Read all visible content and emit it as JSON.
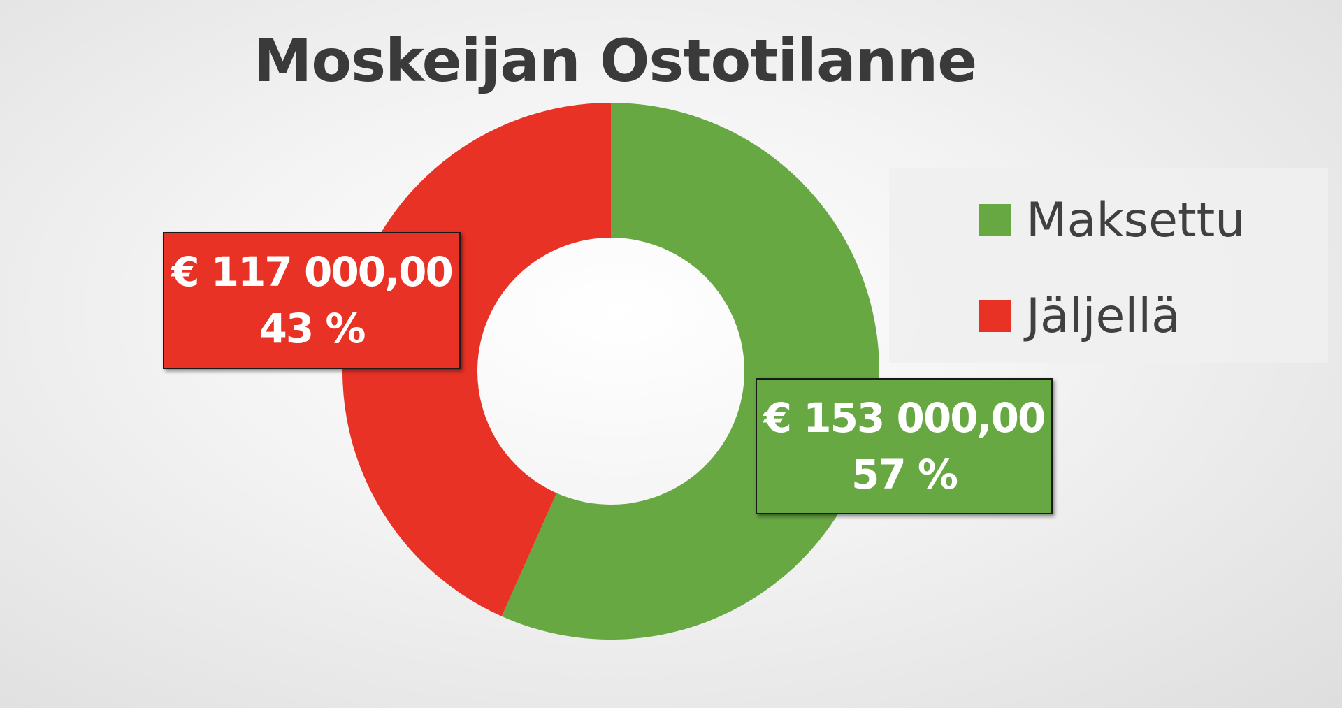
{
  "chart_data": {
    "type": "pie",
    "title": "Moskeijan Ostotilanne",
    "donut": true,
    "categories": [
      "Maksettu",
      "Jäljellä"
    ],
    "values": [
      153000,
      117000
    ],
    "percent_labels": [
      "57 %",
      "43 %"
    ],
    "value_labels": [
      "€ 153 000,00",
      "€ 117 000,00"
    ],
    "colors": [
      "#68a843",
      "#e83226"
    ],
    "start_angle_deg": 0,
    "legend": "right"
  }
}
